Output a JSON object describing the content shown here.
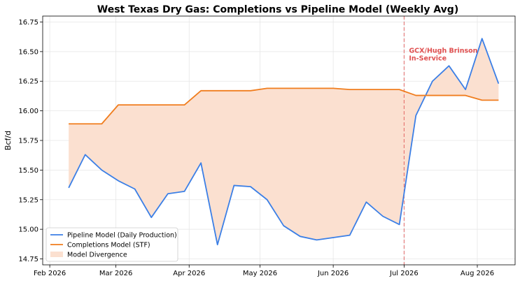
{
  "chart_data": {
    "type": "line",
    "title": "West Texas Dry Gas: Completions vs Pipeline Model (Weekly Avg)",
    "xlabel": "",
    "ylabel": "Bcf/d",
    "x": [
      "2026-02-09",
      "2026-02-16",
      "2026-02-23",
      "2026-03-02",
      "2026-03-09",
      "2026-03-16",
      "2026-03-23",
      "2026-03-30",
      "2026-04-06",
      "2026-04-13",
      "2026-04-20",
      "2026-04-27",
      "2026-05-04",
      "2026-05-11",
      "2026-05-18",
      "2026-05-25",
      "2026-06-01",
      "2026-06-08",
      "2026-06-15",
      "2026-06-22",
      "2026-06-29",
      "2026-07-06",
      "2026-07-13",
      "2026-07-20",
      "2026-07-27",
      "2026-08-03",
      "2026-08-10"
    ],
    "series": [
      {
        "name": "Pipeline Model (Daily Production)",
        "color": "#3b7fe6",
        "values": [
          15.35,
          15.63,
          15.5,
          15.41,
          15.34,
          15.1,
          15.3,
          15.32,
          15.56,
          14.87,
          15.37,
          15.36,
          15.25,
          15.03,
          14.94,
          14.91,
          14.93,
          14.95,
          15.23,
          15.11,
          15.04,
          15.96,
          16.25,
          16.38,
          16.18,
          16.61,
          16.23
        ]
      },
      {
        "name": "Completions Model (STF)",
        "color": "#f07d1e",
        "values": [
          15.89,
          15.89,
          15.89,
          16.05,
          16.05,
          16.05,
          16.05,
          16.05,
          16.17,
          16.17,
          16.17,
          16.17,
          16.19,
          16.19,
          16.19,
          16.19,
          16.19,
          16.18,
          16.18,
          16.18,
          16.18,
          16.13,
          16.13,
          16.13,
          16.13,
          16.09,
          16.09
        ]
      }
    ],
    "fill": {
      "name": "Model Divergence",
      "color": "#fbe0d0"
    },
    "ylim": [
      14.7,
      16.8
    ],
    "yticks": [
      "14.75",
      "15.00",
      "15.25",
      "15.50",
      "15.75",
      "16.00",
      "16.25",
      "16.50",
      "16.75"
    ],
    "xticks": [
      {
        "date": "2026-02-01",
        "label": "Feb 2026"
      },
      {
        "date": "2026-03-01",
        "label": "Mar 2026"
      },
      {
        "date": "2026-04-01",
        "label": "Apr 2026"
      },
      {
        "date": "2026-05-01",
        "label": "May 2026"
      },
      {
        "date": "2026-06-01",
        "label": "Jun 2026"
      },
      {
        "date": "2026-07-01",
        "label": "Jul 2026"
      },
      {
        "date": "2026-08-01",
        "label": "Aug 2026"
      }
    ],
    "xlim": [
      "2026-01-29",
      "2026-08-17"
    ],
    "grid": true,
    "legend_position": "lower-left",
    "annotation": {
      "date": "2026-07-01",
      "lines": [
        "GCX/Hugh Brinson",
        "In-Service"
      ],
      "color": "#e05050"
    }
  }
}
